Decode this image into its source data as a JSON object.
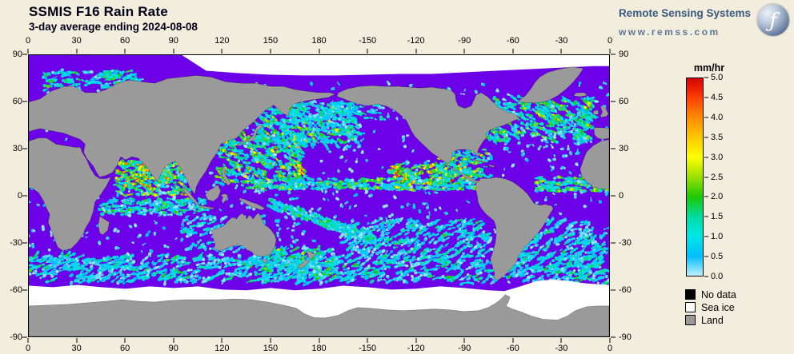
{
  "header": {
    "title": "SSMIS F16 Rain Rate",
    "subtitle": "3-day average ending 2024-08-08"
  },
  "branding": {
    "name": "Remote Sensing Systems",
    "url": "www.remss.com",
    "logo_glyph": "ƒ"
  },
  "map": {
    "lon_ticks": [
      "0",
      "30",
      "60",
      "90",
      "120",
      "150",
      "180",
      "-150",
      "-120",
      "-90",
      "-60",
      "-30",
      "0"
    ],
    "lat_ticks": [
      "90",
      "60",
      "30",
      "0",
      "-30",
      "-60",
      "-90"
    ],
    "colors": {
      "ocean_zero_rain": "#6C00E8",
      "land": "#9A9A9A",
      "sea_ice": "#FFFFFF",
      "no_data": "#000000",
      "page_background": "#F2EDDC",
      "map_border": "#000000"
    }
  },
  "colorbar": {
    "label": "mm/hr",
    "min": 0,
    "max": 5,
    "tick_labels": [
      "5.0",
      "4.5",
      "4.0",
      "3.5",
      "3.0",
      "2.5",
      "2.0",
      "1.5",
      "1.0",
      "0.5",
      "0.0"
    ],
    "gradient_top_to_bottom": [
      "#D60000",
      "#FF4000",
      "#FF8C00",
      "#FFC800",
      "#FFFF00",
      "#9BE000",
      "#1EC800",
      "#00DCA0",
      "#00E6E6",
      "#00BEFF",
      "#BEF0FF"
    ]
  },
  "legend": {
    "items": [
      {
        "label": "No data",
        "color": "#000000"
      },
      {
        "label": "Sea ice",
        "color": "#FFFFFF"
      },
      {
        "label": "Land",
        "color": "#9A9A9A"
      }
    ]
  }
}
